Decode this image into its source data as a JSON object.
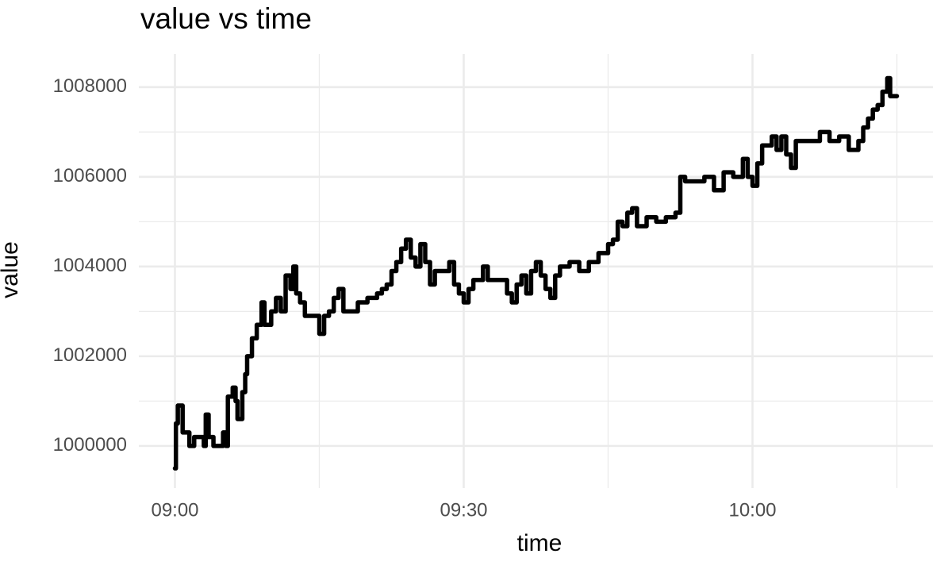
{
  "chart_data": {
    "type": "line",
    "step": true,
    "title": "value vs time",
    "x_label": "time",
    "y_label": "value",
    "color": "#000000",
    "grid": true,
    "xlim": [
      -3.75,
      78.75
    ],
    "xticks": [
      {
        "value": 0,
        "label": "09:00"
      },
      {
        "value": 30,
        "label": "09:30"
      },
      {
        "value": 60,
        "label": "10:00"
      }
    ],
    "minor_xticks": [
      15,
      45,
      75
    ],
    "ylim": [
      999060,
      1008740
    ],
    "yticks": [
      1000000,
      1002000,
      1004000,
      1006000,
      1008000
    ],
    "minor_yticks": [
      1001000,
      1003000,
      1005000,
      1007000
    ],
    "x": [
      0,
      0.1,
      0.3,
      0.8,
      1.5,
      2,
      3,
      3.2,
      3.5,
      4,
      5,
      5.3,
      5.5,
      6,
      6.3,
      6.5,
      7,
      7.3,
      7.5,
      8,
      8.5,
      9,
      9.3,
      10,
      10.5,
      11,
      11.5,
      12,
      12.3,
      12.6,
      13,
      13.5,
      15,
      15.5,
      16,
      16.5,
      17,
      17.5,
      19,
      20,
      21,
      21.5,
      22,
      22.5,
      23,
      23.5,
      24,
      24.5,
      25,
      25.5,
      26,
      26.5,
      27,
      28.5,
      29,
      29.5,
      30,
      30.5,
      31,
      32,
      32.5,
      34.5,
      35,
      35.5,
      36,
      36.5,
      37,
      37.5,
      38,
      38.5,
      39,
      39.5,
      40,
      41,
      42,
      43,
      44,
      45,
      45.5,
      46,
      46.5,
      47,
      47.5,
      48,
      49,
      50,
      51,
      52,
      52.5,
      53,
      55,
      56,
      57,
      58,
      59,
      59.5,
      60,
      60.5,
      61,
      62,
      62.5,
      63,
      63.5,
      64,
      64.5,
      67,
      68,
      69,
      70,
      71,
      71.5,
      72,
      72.5,
      73,
      73.5,
      74,
      74.3,
      75
    ],
    "values": [
      999500,
      1000500,
      1000900,
      1000300,
      1000000,
      1000200,
      1000000,
      1000700,
      1000200,
      1000000,
      1000300,
      1000000,
      1001100,
      1001300,
      1001000,
      1000600,
      1001200,
      1001600,
      1002000,
      1002400,
      1002700,
      1003200,
      1002700,
      1003000,
      1003300,
      1003000,
      1003800,
      1003500,
      1004000,
      1003400,
      1003200,
      1002900,
      1002500,
      1002900,
      1003000,
      1003300,
      1003500,
      1003000,
      1003200,
      1003300,
      1003400,
      1003500,
      1003600,
      1003900,
      1004100,
      1004400,
      1004600,
      1004200,
      1004000,
      1004500,
      1004100,
      1003600,
      1003900,
      1004100,
      1003600,
      1003400,
      1003200,
      1003500,
      1003700,
      1004000,
      1003700,
      1003400,
      1003200,
      1003600,
      1003800,
      1003400,
      1003900,
      1004100,
      1003800,
      1003500,
      1003300,
      1003800,
      1004000,
      1004100,
      1003900,
      1004100,
      1004300,
      1004500,
      1004600,
      1005000,
      1004900,
      1005200,
      1005300,
      1004900,
      1005100,
      1005000,
      1005100,
      1005200,
      1006000,
      1005900,
      1006000,
      1005700,
      1006100,
      1006000,
      1006400,
      1006000,
      1005800,
      1006300,
      1006700,
      1006900,
      1006600,
      1006900,
      1006500,
      1006200,
      1006800,
      1007000,
      1006800,
      1006900,
      1006600,
      1006800,
      1007100,
      1007300,
      1007500,
      1007600,
      1007900,
      1008200,
      1007800,
      1007800
    ]
  }
}
